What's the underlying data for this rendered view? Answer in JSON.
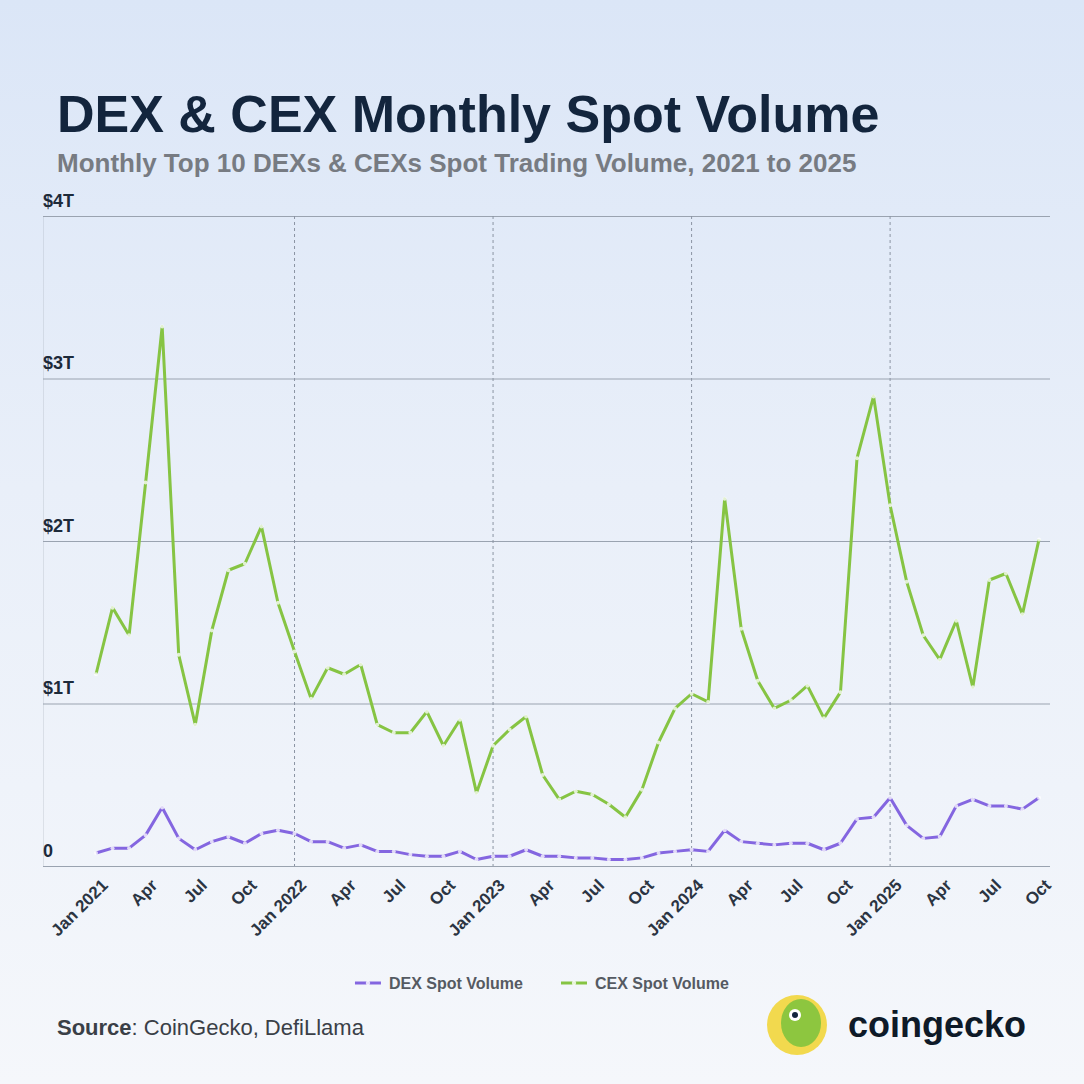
{
  "chart_data": {
    "type": "line",
    "title": "DEX & CEX Monthly Spot Volume",
    "subtitle": "Monthly Top 10 DEXs & CEXs Spot Trading Volume, 2021 to 2025",
    "categories": [
      "Jan 2021",
      null,
      null,
      "Apr",
      null,
      null,
      "Jul",
      null,
      null,
      "Oct",
      null,
      null,
      "Jan 2022",
      null,
      null,
      "Apr",
      null,
      null,
      "Jul",
      null,
      null,
      "Oct",
      null,
      null,
      "Jan 2023",
      null,
      null,
      "Apr",
      null,
      null,
      "Jul",
      null,
      null,
      "Oct",
      null,
      null,
      "Jan 2024",
      null,
      null,
      "Apr",
      null,
      null,
      "Jul",
      null,
      null,
      "Oct",
      null,
      null,
      "Jan 2025",
      null,
      null,
      "Apr",
      null,
      null,
      "Jul",
      null,
      null,
      "Oct"
    ],
    "series": [
      {
        "name": "DEX Spot Volume",
        "color": "#8466e0",
        "marker": "circle",
        "values": [
          0.08,
          0.11,
          0.11,
          0.19,
          0.36,
          0.17,
          0.1,
          0.15,
          0.18,
          0.14,
          0.2,
          0.22,
          0.2,
          0.15,
          0.15,
          0.11,
          0.13,
          0.09,
          0.09,
          0.07,
          0.06,
          0.06,
          0.09,
          0.04,
          0.06,
          0.06,
          0.1,
          0.06,
          0.06,
          0.05,
          0.05,
          0.04,
          0.04,
          0.05,
          0.08,
          0.09,
          0.1,
          0.09,
          0.22,
          0.15,
          0.14,
          0.13,
          0.14,
          0.14,
          0.1,
          0.14,
          0.29,
          0.3,
          0.42,
          0.25,
          0.17,
          0.18,
          0.37,
          0.41,
          0.37,
          0.37,
          0.35,
          0.42
        ]
      },
      {
        "name": "CEX Spot Volume",
        "color": "#86c443",
        "marker": "circle",
        "values": [
          1.18,
          1.59,
          1.42,
          2.36,
          3.32,
          1.3,
          0.87,
          1.45,
          1.82,
          1.86,
          2.09,
          1.62,
          1.32,
          1.03,
          1.22,
          1.18,
          1.24,
          0.87,
          0.82,
          0.82,
          0.95,
          0.74,
          0.9,
          0.45,
          0.74,
          0.84,
          0.92,
          0.56,
          0.41,
          0.46,
          0.44,
          0.38,
          0.3,
          0.47,
          0.76,
          0.97,
          1.06,
          1.01,
          2.26,
          1.46,
          1.14,
          0.97,
          1.02,
          1.11,
          0.91,
          1.07,
          2.51,
          2.89,
          2.22,
          1.75,
          1.42,
          1.27,
          1.51,
          1.1,
          1.76,
          1.8,
          1.55,
          2.01
        ]
      }
    ],
    "ylim": [
      0,
      4
    ],
    "yticks": [
      0,
      {
        "value": 1,
        "label": "$1T"
      },
      {
        "value": 2,
        "label": "$2T"
      },
      {
        "value": 3,
        "label": "$3T"
      },
      {
        "value": 4,
        "label": "$4T"
      }
    ],
    "grid": true,
    "legend": "bottom",
    "source": "Source: CoinGecko, DefiLlama",
    "logo_text": "coingecko"
  }
}
